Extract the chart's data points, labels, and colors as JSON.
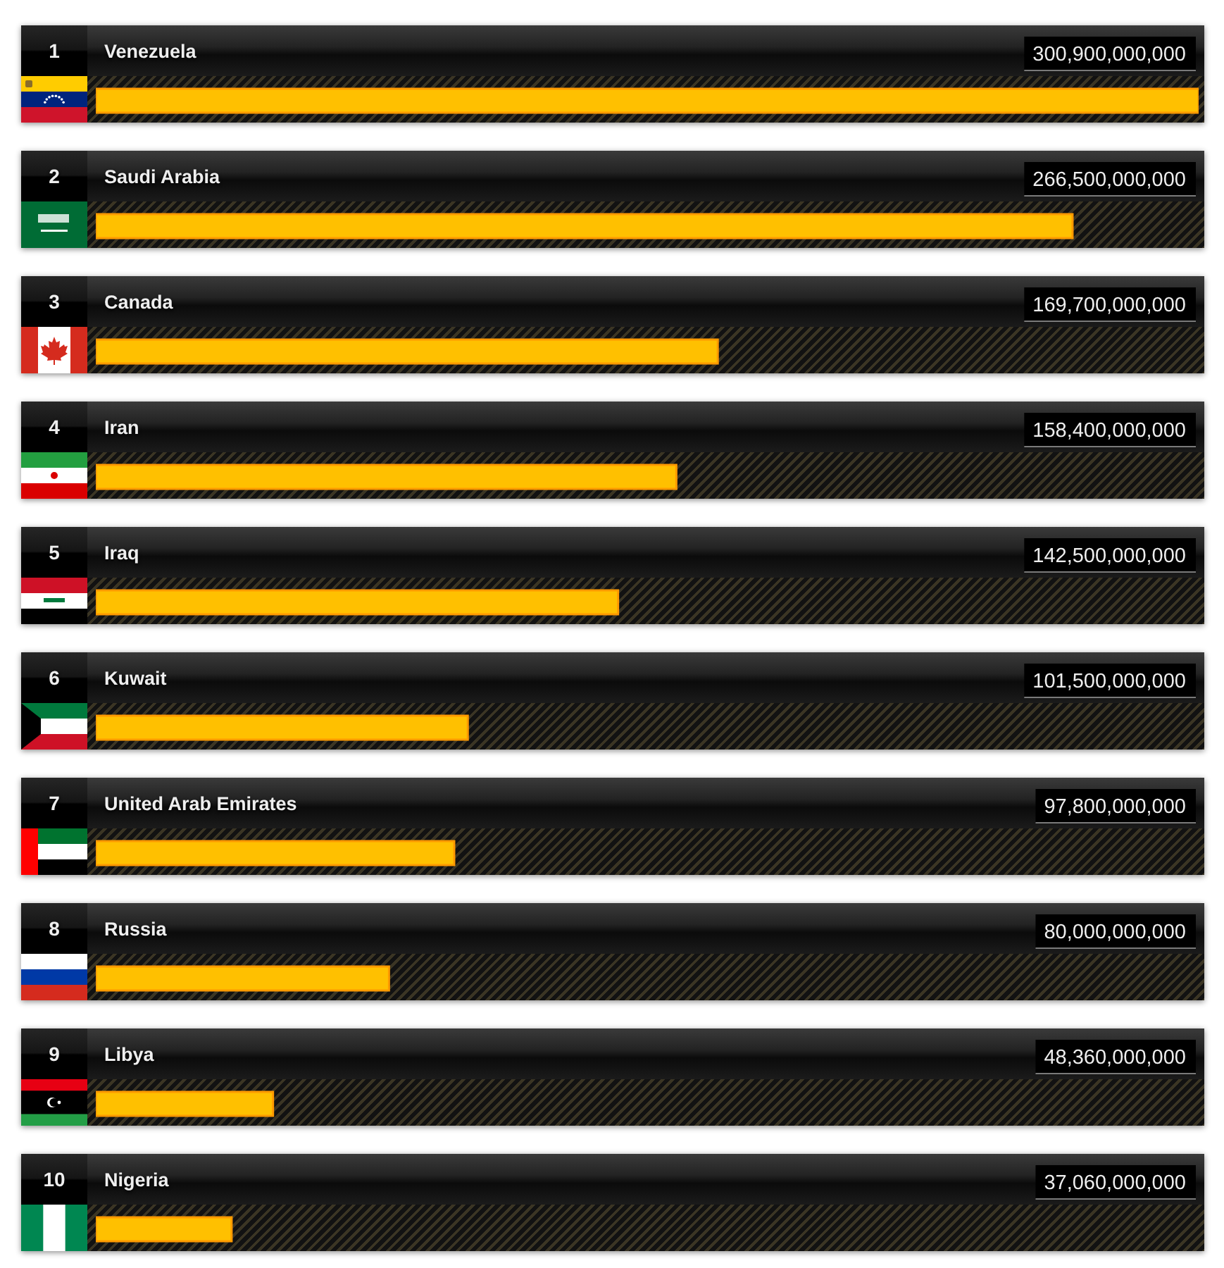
{
  "chart_data": {
    "type": "bar",
    "orientation": "horizontal",
    "categories": [
      "Venezuela",
      "Saudi Arabia",
      "Canada",
      "Iran",
      "Iraq",
      "Kuwait",
      "United Arab Emirates",
      "Russia",
      "Libya",
      "Nigeria"
    ],
    "values": [
      300900000000,
      266500000000,
      169700000000,
      158400000000,
      142500000000,
      101500000000,
      97800000000,
      80000000000,
      48360000000,
      37060000000
    ],
    "value_labels": [
      "300,900,000,000",
      "266,500,000,000",
      "169,700,000,000",
      "158,400,000,000",
      "142,500,000,000",
      "101,500,000,000",
      "97,800,000,000",
      "80,000,000,000",
      "48,360,000,000",
      "37,060,000,000"
    ],
    "color": "#ffc000",
    "tick_labels": "y",
    "annotations": [
      "1",
      "2",
      "3",
      "4",
      "5",
      "6",
      "7",
      "8",
      "9",
      "10"
    ]
  }
}
